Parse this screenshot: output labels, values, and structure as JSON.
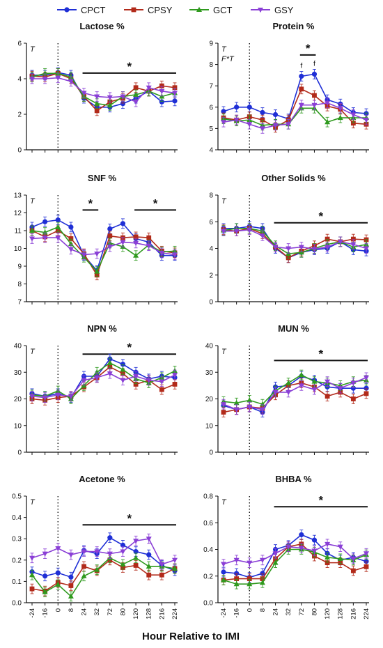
{
  "legend": [
    {
      "name": "CPCT",
      "color": "#1f2fd6",
      "marker": "circle"
    },
    {
      "name": "CPSY",
      "color": "#b22a1a",
      "marker": "square"
    },
    {
      "name": "GCT",
      "color": "#2f9a1e",
      "marker": "triangle-up"
    },
    {
      "name": "GSY",
      "color": "#8a3fd6",
      "marker": "triangle-down"
    }
  ],
  "x_axis_label": "Hour Relative to IMI",
  "chart_data": [
    {
      "type": "line",
      "title": "Lactose %",
      "x": [
        "-24",
        "-16",
        "0",
        "8",
        "24",
        "32",
        "72",
        "80",
        "120",
        "128",
        "216",
        "224"
      ],
      "ylim": [
        0,
        6
      ],
      "yticks": [
        "0",
        "2",
        "4",
        "6"
      ],
      "effect_label": "T",
      "significance": [
        {
          "from": "24",
          "to": "224",
          "label": "*"
        }
      ],
      "series": [
        {
          "name": "CPCT",
          "values": [
            4.2,
            4.2,
            4.35,
            4.2,
            2.9,
            2.4,
            2.4,
            2.6,
            2.9,
            3.3,
            2.7,
            2.75
          ]
        },
        {
          "name": "CPSY",
          "values": [
            4.15,
            4.1,
            4.3,
            4.0,
            3.0,
            2.2,
            2.7,
            2.9,
            3.5,
            3.3,
            3.6,
            3.5
          ]
        },
        {
          "name": "GCT",
          "values": [
            4.1,
            4.3,
            4.3,
            4.1,
            3.0,
            2.6,
            2.5,
            3.0,
            3.1,
            3.3,
            3.0,
            3.2
          ]
        },
        {
          "name": "GSY",
          "values": [
            4.0,
            4.0,
            4.05,
            3.85,
            3.2,
            3.0,
            2.95,
            3.0,
            2.7,
            3.5,
            3.3,
            3.2
          ]
        }
      ]
    },
    {
      "type": "line",
      "title": "Protein %",
      "x": [
        "-24",
        "-16",
        "0",
        "8",
        "24",
        "32",
        "72",
        "80",
        "120",
        "128",
        "216",
        "224"
      ],
      "ylim": [
        4,
        9
      ],
      "yticks": [
        "4",
        "5",
        "6",
        "7",
        "8",
        "9"
      ],
      "effect_label": "T",
      "effect_label_2": "F*T",
      "significance": [
        {
          "from": "72",
          "to": "80",
          "label": "*"
        }
      ],
      "point_letters": [
        {
          "x": "72",
          "label": "f"
        },
        {
          "x": "80",
          "label": "f"
        }
      ],
      "series": [
        {
          "name": "CPCT",
          "values": [
            5.8,
            6.0,
            6.0,
            5.75,
            5.65,
            5.45,
            7.45,
            7.55,
            6.35,
            6.15,
            5.75,
            5.7
          ]
        },
        {
          "name": "CPSY",
          "values": [
            5.5,
            5.4,
            5.55,
            5.4,
            5.05,
            5.4,
            6.85,
            6.55,
            6.05,
            5.9,
            5.25,
            5.2
          ]
        },
        {
          "name": "GCT",
          "values": [
            5.45,
            5.35,
            5.4,
            5.15,
            5.2,
            5.2,
            5.95,
            5.95,
            5.3,
            5.5,
            5.5,
            5.5
          ]
        },
        {
          "name": "GSY",
          "values": [
            5.3,
            5.4,
            5.2,
            5.0,
            5.15,
            5.2,
            6.1,
            6.1,
            6.2,
            5.95,
            5.65,
            5.4
          ]
        }
      ]
    },
    {
      "type": "line",
      "title": "SNF %",
      "x": [
        "-24",
        "-16",
        "0",
        "8",
        "24",
        "32",
        "72",
        "80",
        "120",
        "128",
        "216",
        "224"
      ],
      "ylim": [
        7,
        13
      ],
      "yticks": [
        "7",
        "8",
        "9",
        "10",
        "11",
        "12",
        "13"
      ],
      "effect_label": "T",
      "significance": [
        {
          "from": "24",
          "to": "32",
          "label": "*"
        },
        {
          "from": "120",
          "to": "224",
          "label": "*"
        }
      ],
      "series": [
        {
          "name": "CPCT",
          "values": [
            11.2,
            11.5,
            11.6,
            11.2,
            9.6,
            8.75,
            11.1,
            11.4,
            10.55,
            10.35,
            9.6,
            9.6
          ]
        },
        {
          "name": "CPSY",
          "values": [
            11.0,
            10.65,
            11.0,
            10.55,
            9.7,
            8.5,
            10.7,
            10.6,
            10.65,
            10.6,
            9.85,
            9.75
          ]
        },
        {
          "name": "GCT",
          "values": [
            11.0,
            10.9,
            11.2,
            10.25,
            9.5,
            8.7,
            10.3,
            10.1,
            9.6,
            10.2,
            9.8,
            9.85
          ]
        },
        {
          "name": "GSY",
          "values": [
            10.55,
            10.6,
            10.6,
            9.95,
            9.65,
            9.7,
            10.1,
            10.35,
            10.3,
            10.15,
            9.75,
            9.65
          ]
        }
      ]
    },
    {
      "type": "line",
      "title": "Other Solids %",
      "x": [
        "-24",
        "-16",
        "0",
        "8",
        "24",
        "32",
        "72",
        "80",
        "120",
        "128",
        "216",
        "224"
      ],
      "ylim": [
        0,
        8
      ],
      "yticks": [
        "0",
        "2",
        "4",
        "6",
        "8"
      ],
      "effect_label": "T",
      "significance": [
        {
          "from": "24",
          "to": "224",
          "label": "*"
        }
      ],
      "series": [
        {
          "name": "CPCT",
          "values": [
            5.5,
            5.5,
            5.65,
            5.5,
            4.0,
            3.3,
            3.7,
            3.9,
            4.0,
            4.5,
            3.9,
            3.8
          ]
        },
        {
          "name": "CPSY",
          "values": [
            5.4,
            5.3,
            5.5,
            5.1,
            4.1,
            3.3,
            3.8,
            4.2,
            4.7,
            4.5,
            4.7,
            4.65
          ]
        },
        {
          "name": "GCT",
          "values": [
            5.35,
            5.5,
            5.5,
            5.3,
            4.2,
            3.6,
            3.7,
            4.0,
            4.3,
            4.5,
            4.1,
            4.3
          ]
        },
        {
          "name": "GSY",
          "values": [
            5.3,
            5.3,
            5.4,
            4.95,
            4.1,
            4.0,
            4.1,
            3.95,
            4.1,
            4.5,
            4.3,
            4.0
          ]
        }
      ]
    },
    {
      "type": "line",
      "title": "NPN %",
      "x": [
        "-24",
        "-16",
        "0",
        "8",
        "24",
        "32",
        "72",
        "80",
        "120",
        "128",
        "216",
        "224"
      ],
      "ylim": [
        0,
        40
      ],
      "yticks": [
        "0",
        "10",
        "20",
        "30",
        "40"
      ],
      "effect_label": "T",
      "significance": [
        {
          "from": "24",
          "to": "224",
          "label": "*"
        }
      ],
      "series": [
        {
          "name": "CPCT",
          "values": [
            22.0,
            21.0,
            22.0,
            20.5,
            28.5,
            28.5,
            35.0,
            33.0,
            30.0,
            27.5,
            28.5,
            28.0
          ]
        },
        {
          "name": "CPSY",
          "values": [
            20.0,
            19.5,
            20.5,
            21.0,
            24.5,
            28.0,
            32.0,
            29.5,
            25.5,
            27.0,
            23.5,
            25.5
          ]
        },
        {
          "name": "GCT",
          "values": [
            21.5,
            21.0,
            23.0,
            20.0,
            25.0,
            30.0,
            33.5,
            31.0,
            27.5,
            26.0,
            28.0,
            30.5
          ]
        },
        {
          "name": "GSY",
          "values": [
            21.0,
            20.5,
            21.5,
            21.0,
            27.0,
            28.0,
            29.5,
            27.0,
            28.5,
            27.0,
            26.5,
            29.0
          ]
        }
      ]
    },
    {
      "type": "line",
      "title": "MUN %",
      "x": [
        "-24",
        "-16",
        "0",
        "8",
        "24",
        "32",
        "72",
        "80",
        "120",
        "128",
        "216",
        "224"
      ],
      "ylim": [
        0,
        40
      ],
      "yticks": [
        "0",
        "10",
        "20",
        "30",
        "40"
      ],
      "effect_label": "T",
      "significance": [
        {
          "from": "24",
          "to": "224",
          "label": "*"
        }
      ],
      "series": [
        {
          "name": "CPCT",
          "values": [
            17.5,
            16.0,
            17.0,
            15.0,
            24.5,
            25.0,
            28.5,
            27.0,
            24.5,
            24.0,
            24.0,
            24.0
          ]
        },
        {
          "name": "CPSY",
          "values": [
            15.0,
            16.0,
            17.0,
            16.5,
            21.5,
            25.0,
            26.0,
            24.5,
            21.0,
            22.5,
            20.0,
            22.0
          ]
        },
        {
          "name": "GCT",
          "values": [
            19.0,
            18.5,
            19.5,
            18.0,
            23.0,
            26.0,
            29.0,
            26.5,
            26.0,
            25.0,
            26.5,
            27.0
          ]
        },
        {
          "name": "GSY",
          "values": [
            18.0,
            16.0,
            17.0,
            16.0,
            22.5,
            22.5,
            25.0,
            23.5,
            26.5,
            24.0,
            26.0,
            28.0
          ]
        }
      ]
    },
    {
      "type": "line",
      "title": "Acetone %",
      "x": [
        "-24",
        "-16",
        "0",
        "8",
        "24",
        "32",
        "72",
        "80",
        "120",
        "128",
        "216",
        "224"
      ],
      "ylim": [
        0,
        0.5
      ],
      "yticks": [
        "0.0",
        "0.1",
        "0.2",
        "0.3",
        "0.4",
        "0.5"
      ],
      "effect_label": "T",
      "significance": [
        {
          "from": "24",
          "to": "224",
          "label": "*"
        }
      ],
      "series": [
        {
          "name": "CPCT",
          "values": [
            0.145,
            0.125,
            0.14,
            0.12,
            0.245,
            0.23,
            0.305,
            0.27,
            0.24,
            0.225,
            0.175,
            0.15
          ]
        },
        {
          "name": "CPSY",
          "values": [
            0.065,
            0.055,
            0.095,
            0.08,
            0.17,
            0.15,
            0.2,
            0.165,
            0.175,
            0.13,
            0.13,
            0.16
          ]
        },
        {
          "name": "GCT",
          "values": [
            0.13,
            0.05,
            0.085,
            0.03,
            0.125,
            0.155,
            0.21,
            0.18,
            0.21,
            0.17,
            0.17,
            0.16
          ]
        },
        {
          "name": "GSY",
          "values": [
            0.21,
            0.23,
            0.255,
            0.225,
            0.24,
            0.24,
            0.23,
            0.24,
            0.29,
            0.3,
            0.18,
            0.2
          ]
        }
      ]
    },
    {
      "type": "line",
      "title": "BHBA %",
      "x": [
        "-24",
        "-16",
        "0",
        "8",
        "24",
        "32",
        "72",
        "80",
        "120",
        "128",
        "216",
        "224"
      ],
      "ylim": [
        0,
        0.8
      ],
      "yticks": [
        "0.0",
        "0.2",
        "0.4",
        "0.6",
        "0.8"
      ],
      "effect_label": "T",
      "significance": [
        {
          "from": "24",
          "to": "224",
          "label": "*"
        }
      ],
      "series": [
        {
          "name": "CPCT",
          "values": [
            0.23,
            0.22,
            0.19,
            0.22,
            0.4,
            0.43,
            0.51,
            0.47,
            0.37,
            0.32,
            0.34,
            0.31
          ]
        },
        {
          "name": "CPSY",
          "values": [
            0.17,
            0.18,
            0.18,
            0.18,
            0.33,
            0.42,
            0.44,
            0.35,
            0.3,
            0.3,
            0.24,
            0.27
          ]
        },
        {
          "name": "GCT",
          "values": [
            0.17,
            0.14,
            0.14,
            0.15,
            0.3,
            0.4,
            0.4,
            0.38,
            0.34,
            0.33,
            0.32,
            0.36
          ]
        },
        {
          "name": "GSY",
          "values": [
            0.29,
            0.32,
            0.3,
            0.32,
            0.37,
            0.42,
            0.41,
            0.39,
            0.44,
            0.42,
            0.33,
            0.37
          ]
        }
      ]
    }
  ]
}
